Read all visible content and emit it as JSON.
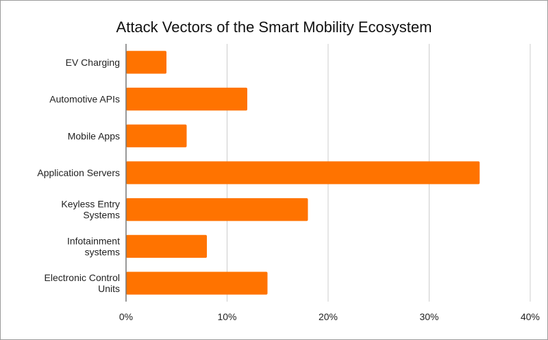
{
  "chart_data": {
    "type": "bar",
    "orientation": "horizontal",
    "title": "Attack Vectors of the Smart Mobility Ecosystem",
    "xlabel": "",
    "ylabel": "",
    "categories": [
      [
        "EV Charging"
      ],
      [
        "Automotive APIs"
      ],
      [
        "Mobile Apps"
      ],
      [
        "Application Servers"
      ],
      [
        "Keyless Entry",
        "Systems"
      ],
      [
        "Infotainment",
        "systems"
      ],
      [
        "Electronic Control",
        "Units"
      ]
    ],
    "values": [
      4,
      12,
      6,
      35,
      18,
      8,
      14
    ],
    "value_unit": "%",
    "xlim": [
      0,
      40
    ],
    "x_ticks": [
      0,
      10,
      20,
      30,
      40
    ],
    "x_tick_labels": [
      "0%",
      "10%",
      "20%",
      "30%",
      "40%"
    ],
    "grid": true,
    "legend": "none",
    "bar_color": "#ff7300"
  }
}
